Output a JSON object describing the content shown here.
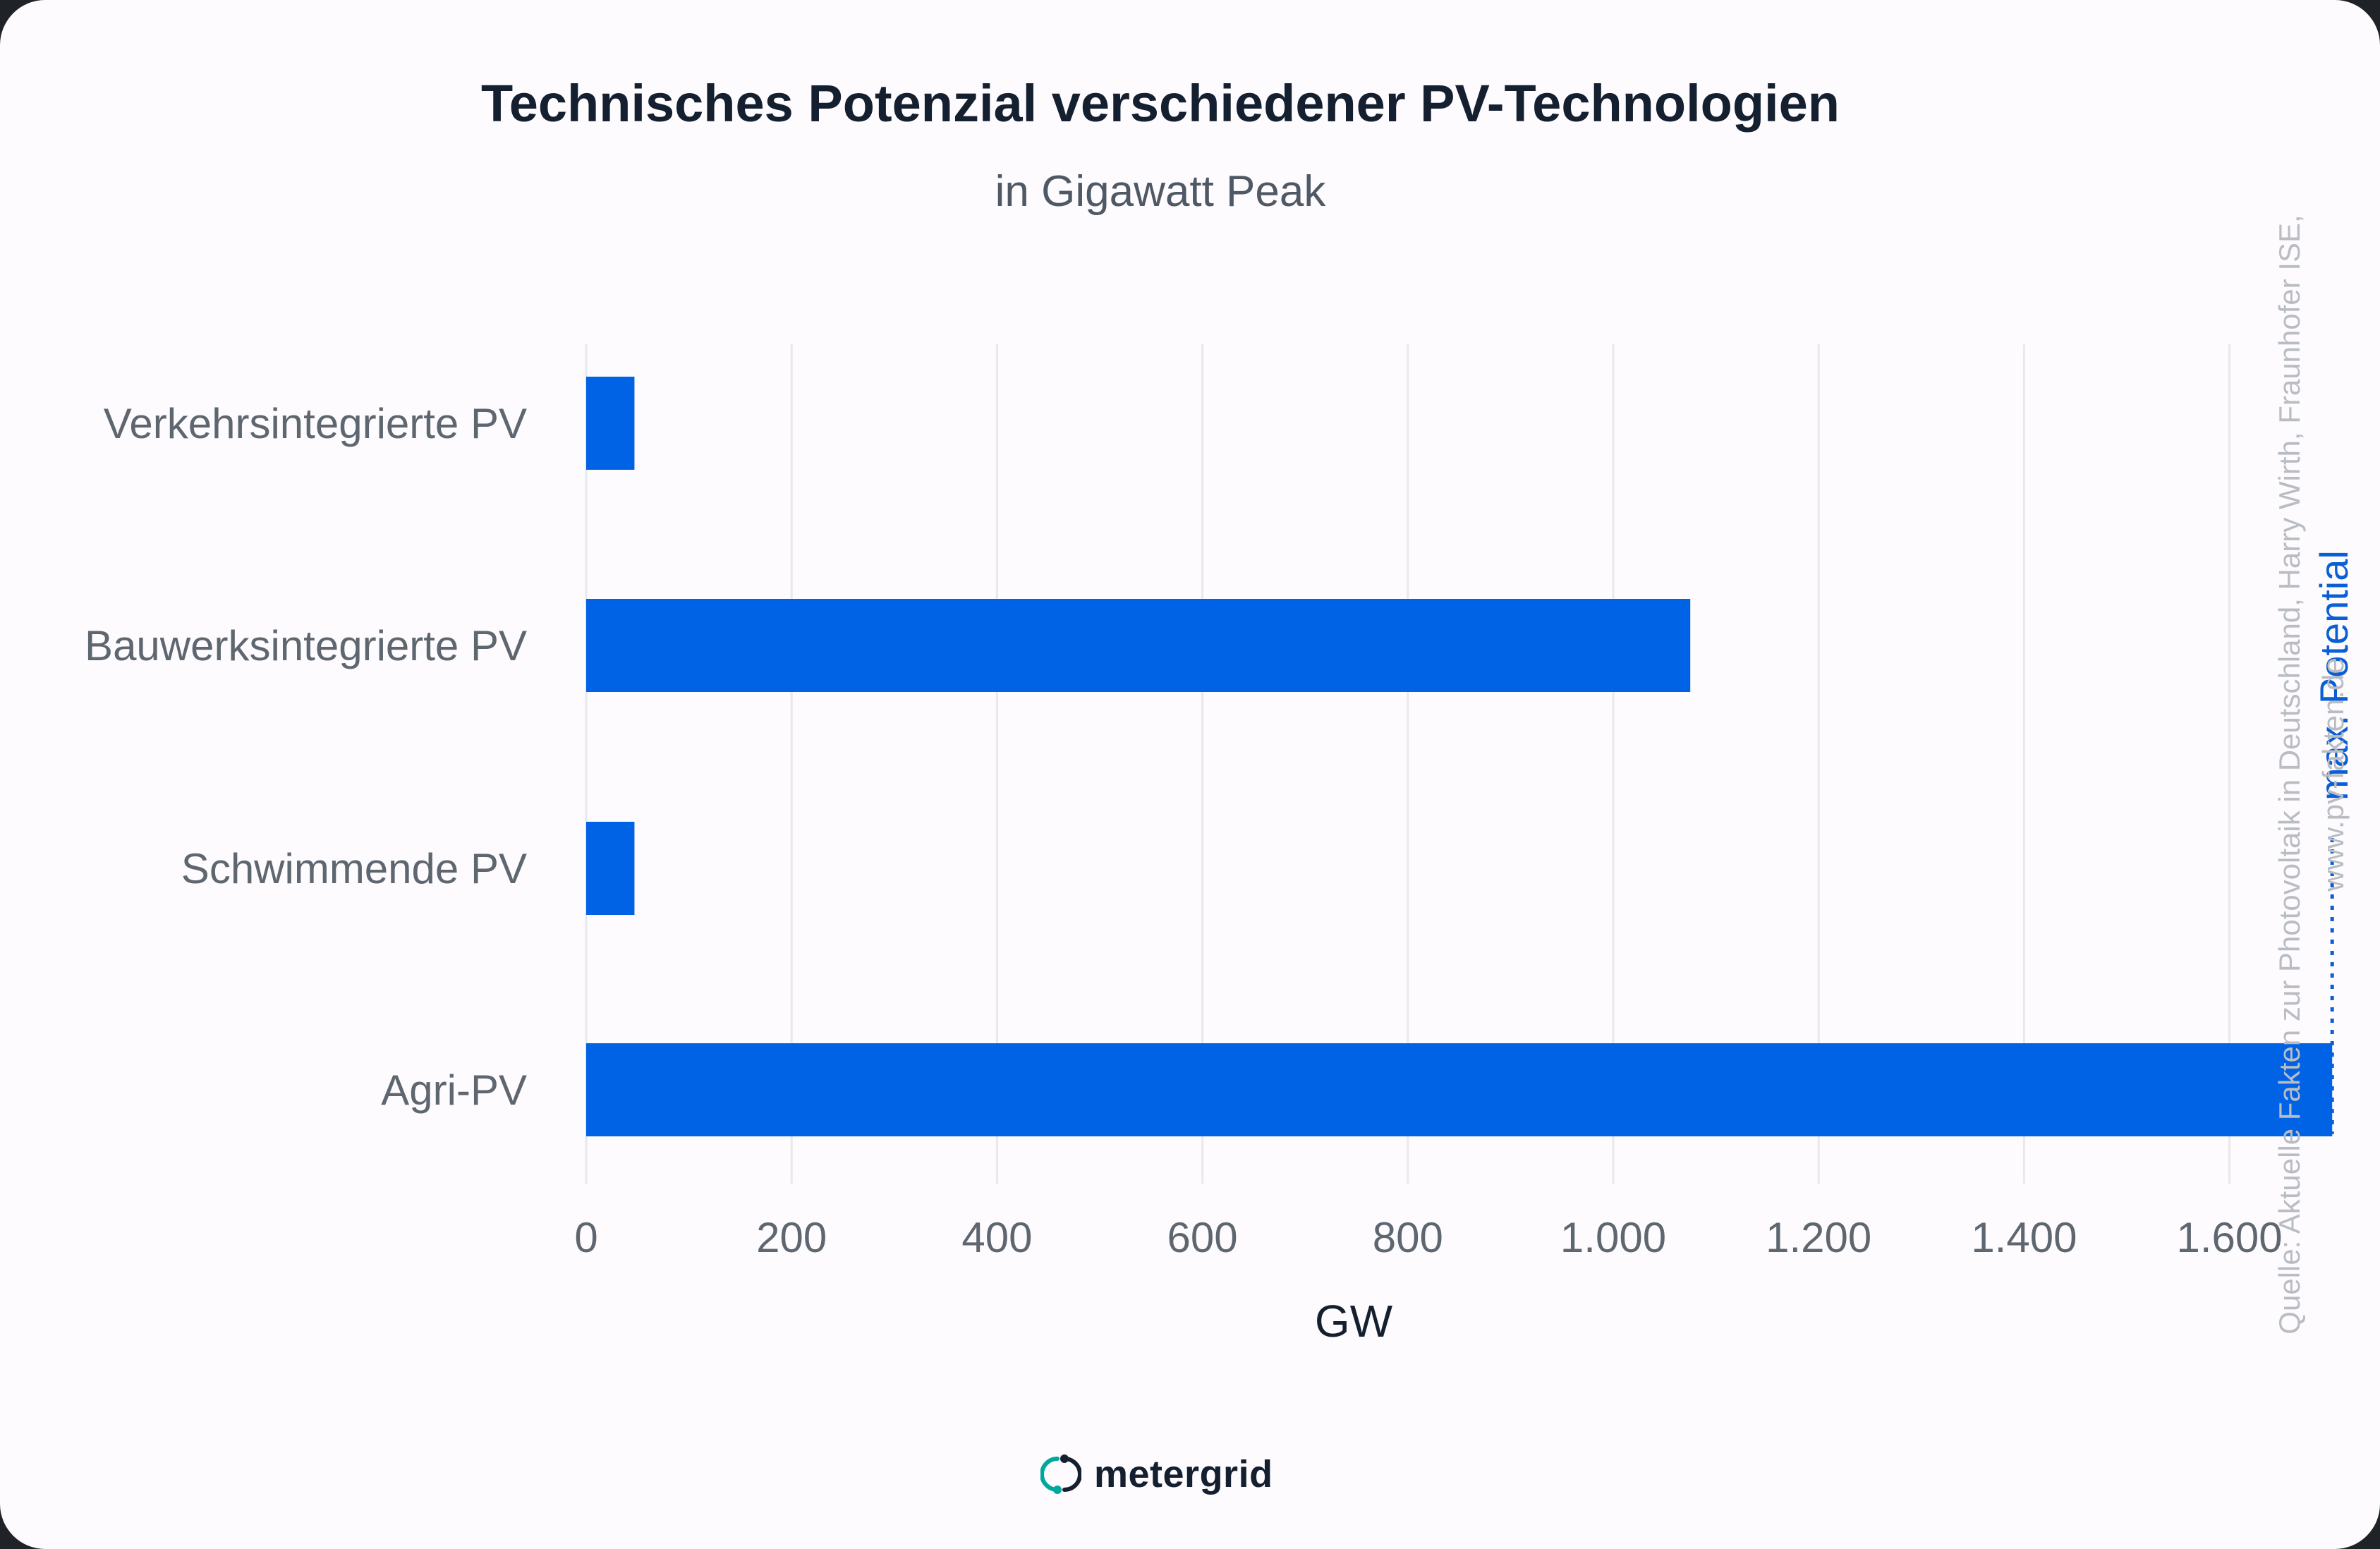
{
  "header": {
    "title": "Technisches Potenzial verschiedener PV-Technologien",
    "subtitle": "in Gigawatt Peak"
  },
  "source_note": {
    "line1": "Quelle: Aktuelle Fakten zur Photovoltaik in Deutschland, Harry Wirth, Fraunhofer ISE,",
    "line2": "www.pv-fakten.de"
  },
  "brand": {
    "name": "metergrid",
    "icon": "metergrid-logo-icon"
  },
  "colors": {
    "bar": "#0063e6",
    "annotation": "#0a5fd6",
    "grid": "#e8e9ec",
    "tick_label": "#5e6670"
  },
  "chart_data": {
    "type": "bar",
    "orientation": "horizontal",
    "title": "Technisches Potenzial verschiedener PV-Technologien",
    "subtitle": "in Gigawatt Peak",
    "categories": [
      "Verkehrsintegrierte PV",
      "Bauwerksintegrierte PV",
      "Schwimmende PV",
      "Agri-PV"
    ],
    "values": [
      47,
      1075,
      47,
      1700
    ],
    "xlabel": "GW",
    "ylabel": "",
    "xlim": [
      0,
      1800
    ],
    "xticks": [
      0,
      200,
      400,
      600,
      800,
      1000,
      1200,
      1400,
      1600
    ],
    "xtick_labels": [
      "0",
      "200",
      "400",
      "600",
      "800",
      "1.000",
      "1.200",
      "1.400",
      "1.600"
    ],
    "grid": "vertical",
    "annotations": [
      {
        "type": "reference-line",
        "x": 1700,
        "style": "dotted",
        "label": "max. Potential"
      }
    ]
  }
}
